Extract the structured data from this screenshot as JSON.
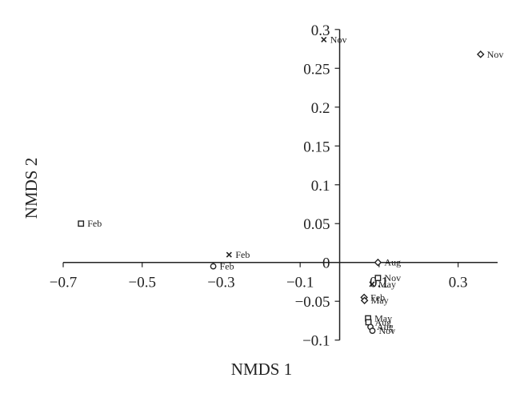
{
  "chart_data": {
    "type": "scatter",
    "title": "",
    "xlabel": "NMDS 1",
    "ylabel": "NMDS 2",
    "xlim": [
      -0.7,
      0.4
    ],
    "ylim": [
      -0.1,
      0.3
    ],
    "x_ticks": [
      -0.7,
      -0.5,
      -0.3,
      -0.1,
      0.1,
      0.3
    ],
    "x_tick_labels": [
      "−0.7",
      "−0.5",
      "−0.3",
      "−0.1",
      "0.1",
      "0.3"
    ],
    "y_ticks": [
      -0.1,
      -0.05,
      0,
      0.05,
      0.1,
      0.15,
      0.2,
      0.25,
      0.3
    ],
    "y_tick_labels": [
      "−0.1",
      "−0.05",
      "0",
      "0.05",
      "0.1",
      "0.15",
      "0.2",
      "0.25",
      "0.3"
    ],
    "grid": false,
    "legend": "none",
    "series": [
      {
        "marker": "square",
        "points": [
          {
            "x": -0.655,
            "y": 0.05,
            "label": "Feb"
          },
          {
            "x": 0.097,
            "y": -0.02,
            "label": "Nov"
          },
          {
            "x": 0.072,
            "y": -0.072,
            "label": "May"
          },
          {
            "x": 0.073,
            "y": -0.077,
            "label": "Aug"
          }
        ]
      },
      {
        "marker": "x",
        "points": [
          {
            "x": -0.04,
            "y": 0.287,
            "label": "Nov"
          },
          {
            "x": -0.28,
            "y": 0.01,
            "label": "Feb"
          },
          {
            "x": 0.082,
            "y": -0.028,
            "label": "May"
          }
        ]
      },
      {
        "marker": "circle",
        "points": [
          {
            "x": -0.32,
            "y": -0.005,
            "label": "Feb"
          },
          {
            "x": 0.078,
            "y": -0.083,
            "label": "Aug"
          },
          {
            "x": 0.083,
            "y": -0.088,
            "label": "Nov"
          }
        ]
      },
      {
        "marker": "diamond",
        "points": [
          {
            "x": 0.357,
            "y": 0.268,
            "label": "Nov"
          },
          {
            "x": 0.097,
            "y": 0.0,
            "label": "Aug"
          },
          {
            "x": 0.062,
            "y": -0.045,
            "label": "Feb"
          },
          {
            "x": 0.063,
            "y": -0.049,
            "label": "May"
          }
        ]
      }
    ]
  }
}
